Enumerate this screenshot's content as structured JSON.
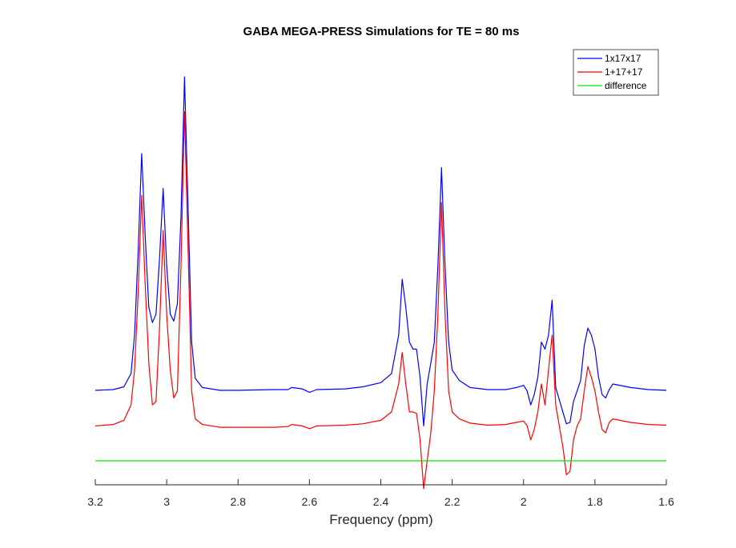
{
  "chart_data": {
    "type": "line",
    "title": "GABA MEGA-PRESS Simulations for TE = 80 ms",
    "xlabel": "Frequency (ppm)",
    "ylabel": "",
    "x_reversed": true,
    "xlim": [
      1.6,
      3.2
    ],
    "xticks": [
      "3.2",
      "3",
      "2.8",
      "2.6",
      "2.4",
      "2.2",
      "2",
      "1.8",
      "1.6"
    ],
    "xtick_values": [
      3.2,
      3.0,
      2.8,
      2.6,
      2.4,
      2.2,
      2.0,
      1.8,
      1.6
    ],
    "ylim": [
      -0.5,
      5.0
    ],
    "y_axis_visible": false,
    "grid": false,
    "legend_position": "top-right",
    "series": [
      {
        "name": "1x17x17",
        "color": "#0000ff",
        "points": [
          [
            3.2,
            0.51
          ],
          [
            3.15,
            0.52
          ],
          [
            3.12,
            0.56
          ],
          [
            3.1,
            0.75
          ],
          [
            3.09,
            1.3
          ],
          [
            3.08,
            2.5
          ],
          [
            3.07,
            3.9
          ],
          [
            3.06,
            2.7
          ],
          [
            3.05,
            1.7
          ],
          [
            3.04,
            1.48
          ],
          [
            3.03,
            1.6
          ],
          [
            3.02,
            2.4
          ],
          [
            3.01,
            3.4
          ],
          [
            3.0,
            2.3
          ],
          [
            2.99,
            1.6
          ],
          [
            2.98,
            1.5
          ],
          [
            2.97,
            1.75
          ],
          [
            2.96,
            3.0
          ],
          [
            2.95,
            5.0
          ],
          [
            2.94,
            3.1
          ],
          [
            2.93,
            1.2
          ],
          [
            2.92,
            0.68
          ],
          [
            2.9,
            0.55
          ],
          [
            2.85,
            0.51
          ],
          [
            2.8,
            0.51
          ],
          [
            2.7,
            0.52
          ],
          [
            2.66,
            0.52
          ],
          [
            2.65,
            0.55
          ],
          [
            2.62,
            0.53
          ],
          [
            2.6,
            0.48
          ],
          [
            2.58,
            0.52
          ],
          [
            2.5,
            0.53
          ],
          [
            2.45,
            0.56
          ],
          [
            2.4,
            0.62
          ],
          [
            2.37,
            0.75
          ],
          [
            2.35,
            1.3
          ],
          [
            2.34,
            2.1
          ],
          [
            2.33,
            1.7
          ],
          [
            2.32,
            1.2
          ],
          [
            2.31,
            1.1
          ],
          [
            2.3,
            1.1
          ],
          [
            2.29,
            0.7
          ],
          [
            2.28,
            0.0
          ],
          [
            2.27,
            0.6
          ],
          [
            2.26,
            0.9
          ],
          [
            2.25,
            1.2
          ],
          [
            2.24,
            2.3
          ],
          [
            2.23,
            3.7
          ],
          [
            2.22,
            2.3
          ],
          [
            2.21,
            1.2
          ],
          [
            2.2,
            0.8
          ],
          [
            2.18,
            0.65
          ],
          [
            2.15,
            0.55
          ],
          [
            2.1,
            0.52
          ],
          [
            2.05,
            0.52
          ],
          [
            2.02,
            0.55
          ],
          [
            2.0,
            0.58
          ],
          [
            1.99,
            0.5
          ],
          [
            1.98,
            0.3
          ],
          [
            1.97,
            0.45
          ],
          [
            1.96,
            0.7
          ],
          [
            1.95,
            1.2
          ],
          [
            1.94,
            1.1
          ],
          [
            1.93,
            1.3
          ],
          [
            1.92,
            1.8
          ],
          [
            1.91,
            0.55
          ],
          [
            1.89,
            0.2
          ],
          [
            1.88,
            0.03
          ],
          [
            1.87,
            0.05
          ],
          [
            1.86,
            0.35
          ],
          [
            1.85,
            0.5
          ],
          [
            1.84,
            0.65
          ],
          [
            1.83,
            1.15
          ],
          [
            1.82,
            1.4
          ],
          [
            1.81,
            1.3
          ],
          [
            1.8,
            1.1
          ],
          [
            1.79,
            0.7
          ],
          [
            1.78,
            0.45
          ],
          [
            1.77,
            0.4
          ],
          [
            1.76,
            0.52
          ],
          [
            1.75,
            0.6
          ],
          [
            1.7,
            0.55
          ],
          [
            1.65,
            0.52
          ],
          [
            1.6,
            0.51
          ]
        ]
      },
      {
        "name": "1+17+17",
        "color": "#ff0000",
        "points": [
          [
            3.2,
            0.0
          ],
          [
            3.15,
            0.02
          ],
          [
            3.12,
            0.08
          ],
          [
            3.1,
            0.3
          ],
          [
            3.09,
            0.8
          ],
          [
            3.08,
            1.9
          ],
          [
            3.07,
            3.3
          ],
          [
            3.06,
            2.0
          ],
          [
            3.05,
            0.9
          ],
          [
            3.04,
            0.3
          ],
          [
            3.03,
            0.35
          ],
          [
            3.02,
            1.4
          ],
          [
            3.01,
            2.8
          ],
          [
            3.0,
            1.6
          ],
          [
            2.99,
            0.8
          ],
          [
            2.98,
            0.4
          ],
          [
            2.97,
            0.5
          ],
          [
            2.96,
            2.3
          ],
          [
            2.95,
            4.5
          ],
          [
            2.94,
            2.5
          ],
          [
            2.93,
            0.5
          ],
          [
            2.92,
            0.1
          ],
          [
            2.9,
            0.02
          ],
          [
            2.85,
            -0.02
          ],
          [
            2.8,
            -0.02
          ],
          [
            2.7,
            -0.02
          ],
          [
            2.66,
            -0.01
          ],
          [
            2.65,
            0.02
          ],
          [
            2.62,
            0.0
          ],
          [
            2.6,
            -0.04
          ],
          [
            2.58,
            0.0
          ],
          [
            2.5,
            0.01
          ],
          [
            2.45,
            0.03
          ],
          [
            2.4,
            0.08
          ],
          [
            2.37,
            0.2
          ],
          [
            2.35,
            0.6
          ],
          [
            2.34,
            1.05
          ],
          [
            2.33,
            0.6
          ],
          [
            2.32,
            0.2
          ],
          [
            2.31,
            0.2
          ],
          [
            2.3,
            0.18
          ],
          [
            2.29,
            -0.2
          ],
          [
            2.28,
            -0.9
          ],
          [
            2.27,
            -0.5
          ],
          [
            2.26,
            -0.1
          ],
          [
            2.25,
            0.5
          ],
          [
            2.24,
            1.6
          ],
          [
            2.23,
            3.2
          ],
          [
            2.22,
            1.6
          ],
          [
            2.21,
            0.5
          ],
          [
            2.2,
            0.2
          ],
          [
            2.18,
            0.1
          ],
          [
            2.15,
            0.04
          ],
          [
            2.1,
            0.01
          ],
          [
            2.05,
            0.02
          ],
          [
            2.02,
            0.05
          ],
          [
            2.0,
            0.07
          ],
          [
            1.99,
            0.0
          ],
          [
            1.98,
            -0.2
          ],
          [
            1.97,
            -0.05
          ],
          [
            1.96,
            0.2
          ],
          [
            1.95,
            0.6
          ],
          [
            1.94,
            0.3
          ],
          [
            1.93,
            0.8
          ],
          [
            1.92,
            1.3
          ],
          [
            1.91,
            0.3
          ],
          [
            1.89,
            -0.3
          ],
          [
            1.88,
            -0.7
          ],
          [
            1.87,
            -0.65
          ],
          [
            1.86,
            -0.2
          ],
          [
            1.85,
            0.0
          ],
          [
            1.84,
            0.1
          ],
          [
            1.83,
            0.5
          ],
          [
            1.82,
            0.85
          ],
          [
            1.81,
            0.7
          ],
          [
            1.8,
            0.5
          ],
          [
            1.79,
            0.2
          ],
          [
            1.78,
            -0.05
          ],
          [
            1.77,
            -0.1
          ],
          [
            1.76,
            0.05
          ],
          [
            1.75,
            0.1
          ],
          [
            1.7,
            0.05
          ],
          [
            1.65,
            0.02
          ],
          [
            1.6,
            0.01
          ]
        ]
      },
      {
        "name": "difference",
        "color": "#00e600",
        "points": [
          [
            3.2,
            -0.5
          ],
          [
            1.6,
            -0.5
          ]
        ]
      }
    ]
  }
}
